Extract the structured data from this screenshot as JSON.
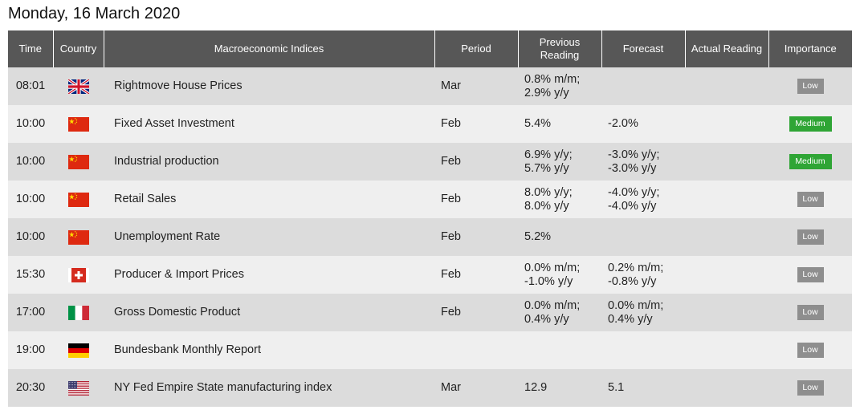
{
  "title": "Monday, 16 March 2020",
  "columns": {
    "time": "Time",
    "country": "Country",
    "indices": "Macroeconomic Indices",
    "period": "Period",
    "previous_line1": "Previous",
    "previous_line2": "Reading",
    "forecast": "Forecast",
    "actual": "Actual Reading",
    "importance": "Importance"
  },
  "colors": {
    "header_bg": "#575757",
    "row_dark": "#dcdcdc",
    "row_light": "#efefef",
    "low_badge": "#8e8e8e",
    "medium_badge": "#2fa535"
  },
  "rows": [
    {
      "time": "08:01",
      "flag": "uk-flag-icon",
      "index": "Rightmove House Prices",
      "period": "Mar",
      "previous": [
        "0.8% m/m;",
        "2.9% y/y"
      ],
      "forecast": [],
      "actual": "",
      "importance": "Low"
    },
    {
      "time": "10:00",
      "flag": "china-flag-icon",
      "index": "Fixed Asset Investment",
      "period": "Feb",
      "previous": [
        "5.4%"
      ],
      "forecast": [
        "-2.0%"
      ],
      "actual": "",
      "importance": "Medium"
    },
    {
      "time": "10:00",
      "flag": "china-flag-icon",
      "index": "Industrial production",
      "period": "Feb",
      "previous": [
        "6.9% y/y;",
        "5.7% y/y"
      ],
      "forecast": [
        "-3.0% y/y;",
        "-3.0% y/y"
      ],
      "actual": "",
      "importance": "Medium"
    },
    {
      "time": "10:00",
      "flag": "china-flag-icon",
      "index": "Retail Sales",
      "period": "Feb",
      "previous": [
        "8.0% y/y;",
        "8.0% y/y"
      ],
      "forecast": [
        "-4.0% y/y;",
        "-4.0% y/y"
      ],
      "actual": "",
      "importance": "Low"
    },
    {
      "time": "10:00",
      "flag": "china-flag-icon",
      "index": "Unemployment Rate",
      "period": "Feb",
      "previous": [
        "5.2%"
      ],
      "forecast": [],
      "actual": "",
      "importance": "Low"
    },
    {
      "time": "15:30",
      "flag": "switzerland-flag-icon",
      "index": "Producer & Import Prices",
      "period": "Feb",
      "previous": [
        "0.0% m/m;",
        "-1.0% y/y"
      ],
      "forecast": [
        "0.2% m/m;",
        "-0.8% y/y"
      ],
      "actual": "",
      "importance": "Low"
    },
    {
      "time": "17:00",
      "flag": "italy-flag-icon",
      "index": "Gross Domestic Product",
      "period": "Feb",
      "previous": [
        "0.0% m/m;",
        "0.4% y/y"
      ],
      "forecast": [
        "0.0% m/m;",
        "0.4% y/y"
      ],
      "actual": "",
      "importance": "Low"
    },
    {
      "time": "19:00",
      "flag": "germany-flag-icon",
      "index": "Bundesbank Monthly Report",
      "period": "",
      "previous": [],
      "forecast": [],
      "actual": "",
      "importance": "Low"
    },
    {
      "time": "20:30",
      "flag": "usa-flag-icon",
      "index": "NY Fed Empire State manufacturing index",
      "period": "Mar",
      "previous": [
        "12.9"
      ],
      "forecast": [
        "5.1"
      ],
      "actual": "",
      "importance": "Low"
    }
  ]
}
